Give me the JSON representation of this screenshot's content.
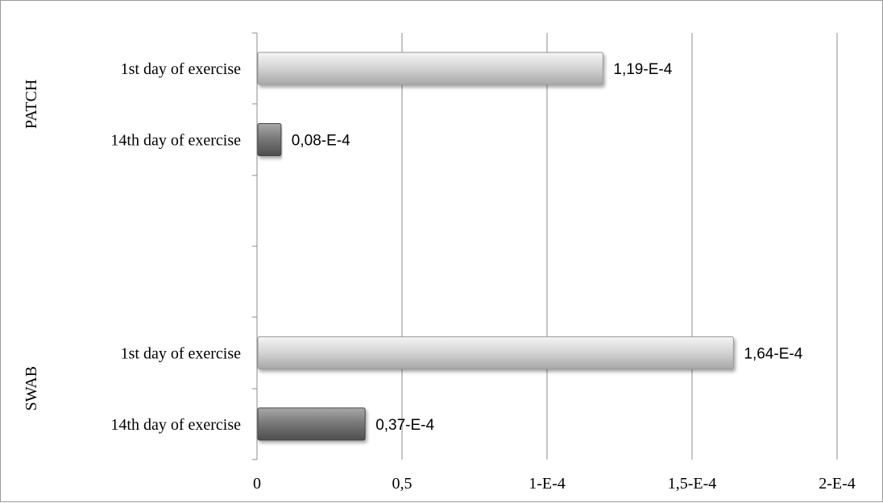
{
  "chart_data": {
    "type": "bar",
    "orientation": "horizontal",
    "groups": [
      {
        "name": "PATCH",
        "categories": [
          {
            "label": "1st day of exercise",
            "value": 1.19,
            "data_label": "1,19-E-4",
            "color": "#d4d4d4"
          },
          {
            "label": "14th day of exercise",
            "value": 0.08,
            "data_label": "0,08-E-4",
            "color": "#7a7a7a"
          }
        ]
      },
      {
        "name": "SWAB",
        "categories": [
          {
            "label": "1st day of exercise",
            "value": 1.64,
            "data_label": "1,64-E-4",
            "color": "#d4d4d4"
          },
          {
            "label": "14th day of exercise",
            "value": 0.37,
            "data_label": "0,37-E-4",
            "color": "#7a7a7a"
          }
        ]
      }
    ],
    "x_ticks": [
      {
        "value": 0,
        "label": "0"
      },
      {
        "value": 0.5,
        "label": "0,5"
      },
      {
        "value": 1,
        "label": "1-E-4"
      },
      {
        "value": 1.5,
        "label": "1,5-E-4"
      },
      {
        "value": 2,
        "label": "2-E-4"
      }
    ],
    "xlim": [
      0,
      2
    ],
    "grid": true,
    "title": "",
    "xlabel": "",
    "ylabel": ""
  }
}
